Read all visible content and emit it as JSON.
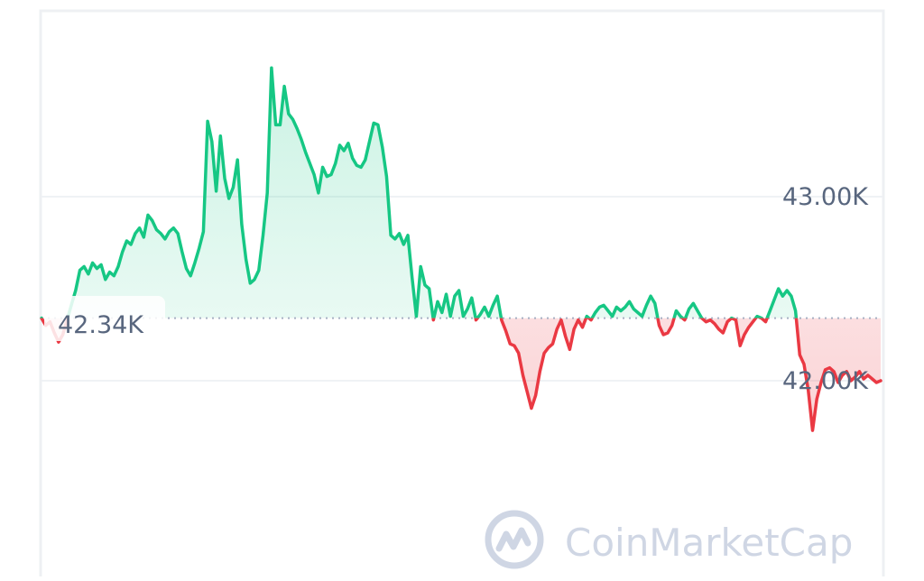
{
  "chart_data": {
    "type": "area",
    "title": "",
    "xlabel": "",
    "ylabel": "",
    "y_ticks": [
      {
        "value": 43000,
        "label": "43.00K"
      },
      {
        "value": 42000,
        "label": "42.00K"
      }
    ],
    "ylim": [
      41500,
      43800
    ],
    "baseline": {
      "value": 42340,
      "label": "42.34K"
    },
    "grid": true,
    "x_ticks": [],
    "series": [
      {
        "values": [
          42340,
          42300,
          42320,
          42260,
          42210,
          42250,
          42330,
          42410,
          42490,
          42600,
          42620,
          42580,
          42640,
          42610,
          42630,
          42550,
          42590,
          42570,
          42620,
          42700,
          42760,
          42740,
          42800,
          42830,
          42780,
          42900,
          42870,
          42820,
          42800,
          42770,
          42810,
          42830,
          42800,
          42700,
          42610,
          42570,
          42640,
          42720,
          42810,
          43410,
          43300,
          43030,
          43330,
          43100,
          42990,
          43050,
          43200,
          42850,
          42660,
          42530,
          42550,
          42600,
          42790,
          43020,
          43700,
          43390,
          43390,
          43600,
          43450,
          43420,
          43370,
          43310,
          43240,
          43180,
          43120,
          43020,
          43160,
          43110,
          43120,
          43180,
          43280,
          43250,
          43290,
          43210,
          43170,
          43160,
          43200,
          43300,
          43400,
          43390,
          43270,
          43110,
          42790,
          42770,
          42800,
          42740,
          42790,
          42560,
          42350,
          42620,
          42520,
          42500,
          42330,
          42430,
          42370,
          42470,
          42350,
          42460,
          42490,
          42350,
          42390,
          42450,
          42330,
          42360,
          42400,
          42350,
          42410,
          42460,
          42330,
          42270,
          42200,
          42190,
          42150,
          42030,
          41940,
          41850,
          41920,
          42050,
          42150,
          42180,
          42200,
          42280,
          42330,
          42240,
          42170,
          42280,
          42330,
          42290,
          42350,
          42330,
          42370,
          42400,
          42410,
          42380,
          42350,
          42400,
          42380,
          42400,
          42430,
          42390,
          42370,
          42350,
          42410,
          42460,
          42420,
          42300,
          42250,
          42260,
          42300,
          42380,
          42350,
          42330,
          42390,
          42420,
          42380,
          42340,
          42320,
          42330,
          42310,
          42280,
          42260,
          42320,
          42340,
          42330,
          42190,
          42250,
          42290,
          42320,
          42350,
          42340,
          42320,
          42380,
          42440,
          42500,
          42460,
          42490,
          42460,
          42380,
          42140,
          42090,
          41950,
          41730,
          41900,
          41990,
          42060,
          42070,
          42050,
          41990,
          42030,
          42050,
          42000,
          42020,
          42050,
          42010,
          42030,
          42010,
          41990,
          42000
        ]
      }
    ]
  },
  "watermark": {
    "text": "CoinMarketCap"
  },
  "colors": {
    "up": "#16c784",
    "down": "#ea3943",
    "grid": "#eff2f5",
    "axis_text": "#58667e",
    "baseline": "#a6b0c3",
    "watermark": "#cfd6e4"
  }
}
